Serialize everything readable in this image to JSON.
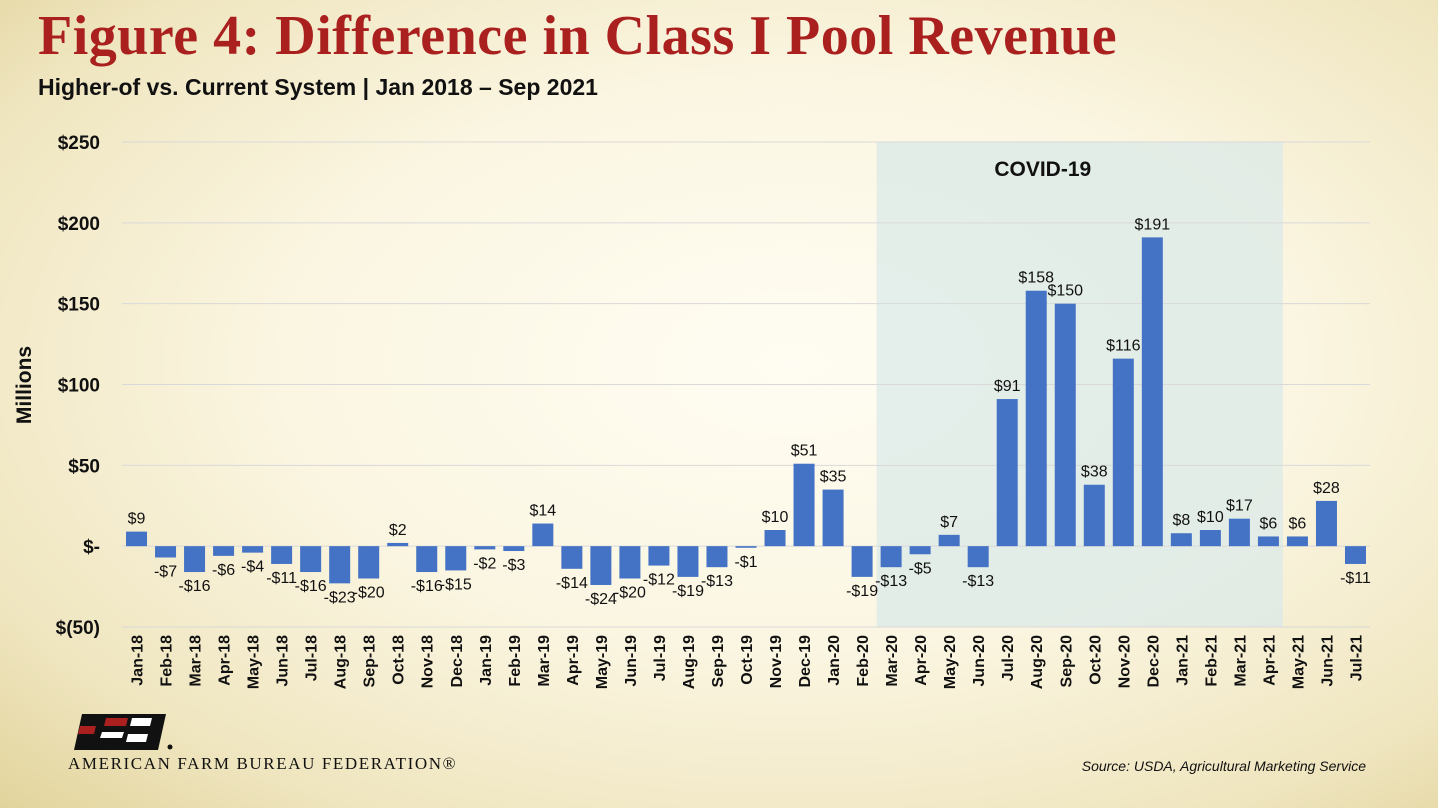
{
  "title": "Figure 4: Difference in Class I Pool Revenue",
  "subtitle": "Higher-of vs. Current System | Jan 2018 – Sep 2021",
  "source": "Source: USDA, Agricultural Marketing Service",
  "organization": "AMERICAN FARM BUREAU FEDERATION®",
  "logo_text": "FB",
  "colors": {
    "bar": "#4472c4",
    "title": "#a9201f",
    "covid_band": "#dbe9e8",
    "grid": "#d9d9d9"
  },
  "chart_data": {
    "type": "bar",
    "ylabel": "Millions",
    "ylim": [
      -50,
      250
    ],
    "yticks": [
      {
        "value": 250,
        "label": "$250"
      },
      {
        "value": 200,
        "label": "$200"
      },
      {
        "value": 150,
        "label": "$150"
      },
      {
        "value": 100,
        "label": "$100"
      },
      {
        "value": 50,
        "label": "$50"
      },
      {
        "value": 0,
        "label": "$-"
      },
      {
        "value": -50,
        "label": "$(50)"
      }
    ],
    "grid": true,
    "categories": [
      "Jan-18",
      "Feb-18",
      "Mar-18",
      "Apr-18",
      "May-18",
      "Jun-18",
      "Jul-18",
      "Aug-18",
      "Sep-18",
      "Oct-18",
      "Nov-18",
      "Dec-18",
      "Jan-19",
      "Feb-19",
      "Mar-19",
      "Apr-19",
      "May-19",
      "Jun-19",
      "Jul-19",
      "Aug-19",
      "Sep-19",
      "Oct-19",
      "Nov-19",
      "Dec-19",
      "Jan-20",
      "Feb-20",
      "Mar-20",
      "Apr-20",
      "May-20",
      "Jun-20",
      "Jul-20",
      "Aug-20",
      "Sep-20",
      "Oct-20",
      "Nov-20",
      "Dec-20",
      "Jan-21",
      "Feb-21",
      "Mar-21",
      "Apr-21",
      "May-21",
      "Jun-21",
      "Jul-21"
    ],
    "values": [
      9,
      -7,
      -16,
      -6,
      -4,
      -11,
      -16,
      -23,
      -20,
      2,
      -16,
      -15,
      -2,
      -3,
      14,
      -14,
      -24,
      -20,
      -12,
      -19,
      -13,
      -1,
      10,
      51,
      35,
      -19,
      -13,
      -5,
      7,
      -13,
      91,
      158,
      150,
      38,
      116,
      191,
      8,
      10,
      17,
      6,
      6,
      28,
      -11
    ],
    "data_labels": [
      "$9",
      "-$7",
      "-$16",
      "-$6",
      "-$4",
      "-$11",
      "-$16",
      "-$23",
      "-$20",
      "$2",
      "-$16",
      "-$15",
      "-$2",
      "-$3",
      "$14",
      "-$14",
      "-$24",
      "-$20",
      "-$12",
      "-$19",
      "-$13",
      "-$1",
      "$10",
      "$51",
      "$35",
      "-$19",
      "-$13",
      "-$5",
      "$7",
      "-$13",
      "$91",
      "$158",
      "$150",
      "$38",
      "$116",
      "$191",
      "$8",
      "$10",
      "$17",
      "$6",
      "$6",
      "$28",
      "-$11"
    ],
    "annotations": [
      {
        "text": "COVID-19",
        "x_start": "Mar-20",
        "x_end": "Apr-21"
      }
    ]
  }
}
